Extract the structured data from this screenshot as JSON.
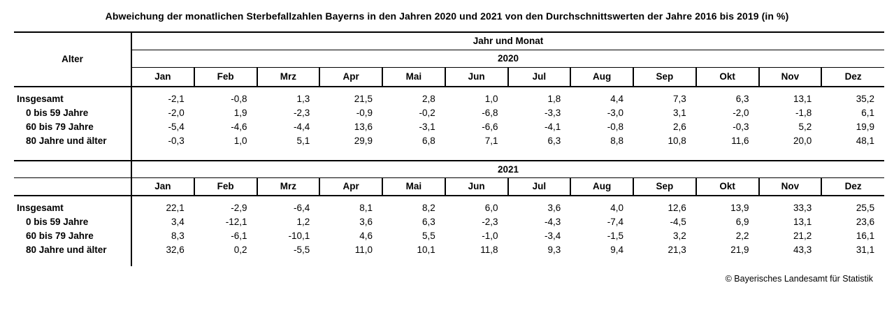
{
  "title": "Abweichung der monatlichen Sterbefallzahlen Bayerns in den Jahren 2020 und 2021 von den Durchschnittswerten der Jahre 2016 bis 2019 (in %)",
  "table": {
    "age_column_header": "Alter",
    "group_header": "Jahr und Monat",
    "months": [
      "Jan",
      "Feb",
      "Mrz",
      "Apr",
      "Mai",
      "Jun",
      "Jul",
      "Aug",
      "Sep",
      "Okt",
      "Nov",
      "Dez"
    ],
    "sections": [
      {
        "year": "2020",
        "rows": [
          {
            "label": "Insgesamt",
            "indent": false,
            "values": [
              "-2,1",
              "-0,8",
              "1,3",
              "21,5",
              "2,8",
              "1,0",
              "1,8",
              "4,4",
              "7,3",
              "6,3",
              "13,1",
              "35,2"
            ]
          },
          {
            "label": "0 bis 59 Jahre",
            "indent": true,
            "values": [
              "-2,0",
              "1,9",
              "-2,3",
              "-0,9",
              "-0,2",
              "-6,8",
              "-3,3",
              "-3,0",
              "3,1",
              "-2,0",
              "-1,8",
              "6,1"
            ]
          },
          {
            "label": "60 bis 79 Jahre",
            "indent": true,
            "values": [
              "-5,4",
              "-4,6",
              "-4,4",
              "13,6",
              "-3,1",
              "-6,6",
              "-4,1",
              "-0,8",
              "2,6",
              "-0,3",
              "5,2",
              "19,9"
            ]
          },
          {
            "label": "80 Jahre und älter",
            "indent": true,
            "values": [
              "-0,3",
              "1,0",
              "5,1",
              "29,9",
              "6,8",
              "7,1",
              "6,3",
              "8,8",
              "10,8",
              "11,6",
              "20,0",
              "48,1"
            ]
          }
        ]
      },
      {
        "year": "2021",
        "rows": [
          {
            "label": "Insgesamt",
            "indent": false,
            "values": [
              "22,1",
              "-2,9",
              "-6,4",
              "8,1",
              "8,2",
              "6,0",
              "3,6",
              "4,0",
              "12,6",
              "13,9",
              "33,3",
              "25,5"
            ]
          },
          {
            "label": "0 bis 59 Jahre",
            "indent": true,
            "values": [
              "3,4",
              "-12,1",
              "1,2",
              "3,6",
              "6,3",
              "-2,3",
              "-4,3",
              "-7,4",
              "-4,5",
              "6,9",
              "13,1",
              "23,6"
            ]
          },
          {
            "label": "60 bis 79 Jahre",
            "indent": true,
            "values": [
              "8,3",
              "-6,1",
              "-10,1",
              "4,6",
              "5,5",
              "-1,0",
              "-3,4",
              "-1,5",
              "3,2",
              "2,2",
              "21,2",
              "16,1"
            ]
          },
          {
            "label": "80 Jahre und älter",
            "indent": true,
            "values": [
              "32,6",
              "0,2",
              "-5,5",
              "11,0",
              "10,1",
              "11,8",
              "9,3",
              "9,4",
              "21,3",
              "21,9",
              "43,3",
              "31,1"
            ]
          }
        ]
      }
    ]
  },
  "footer": {
    "copyright": "© Bayerisches Landesamt für Statistik"
  }
}
